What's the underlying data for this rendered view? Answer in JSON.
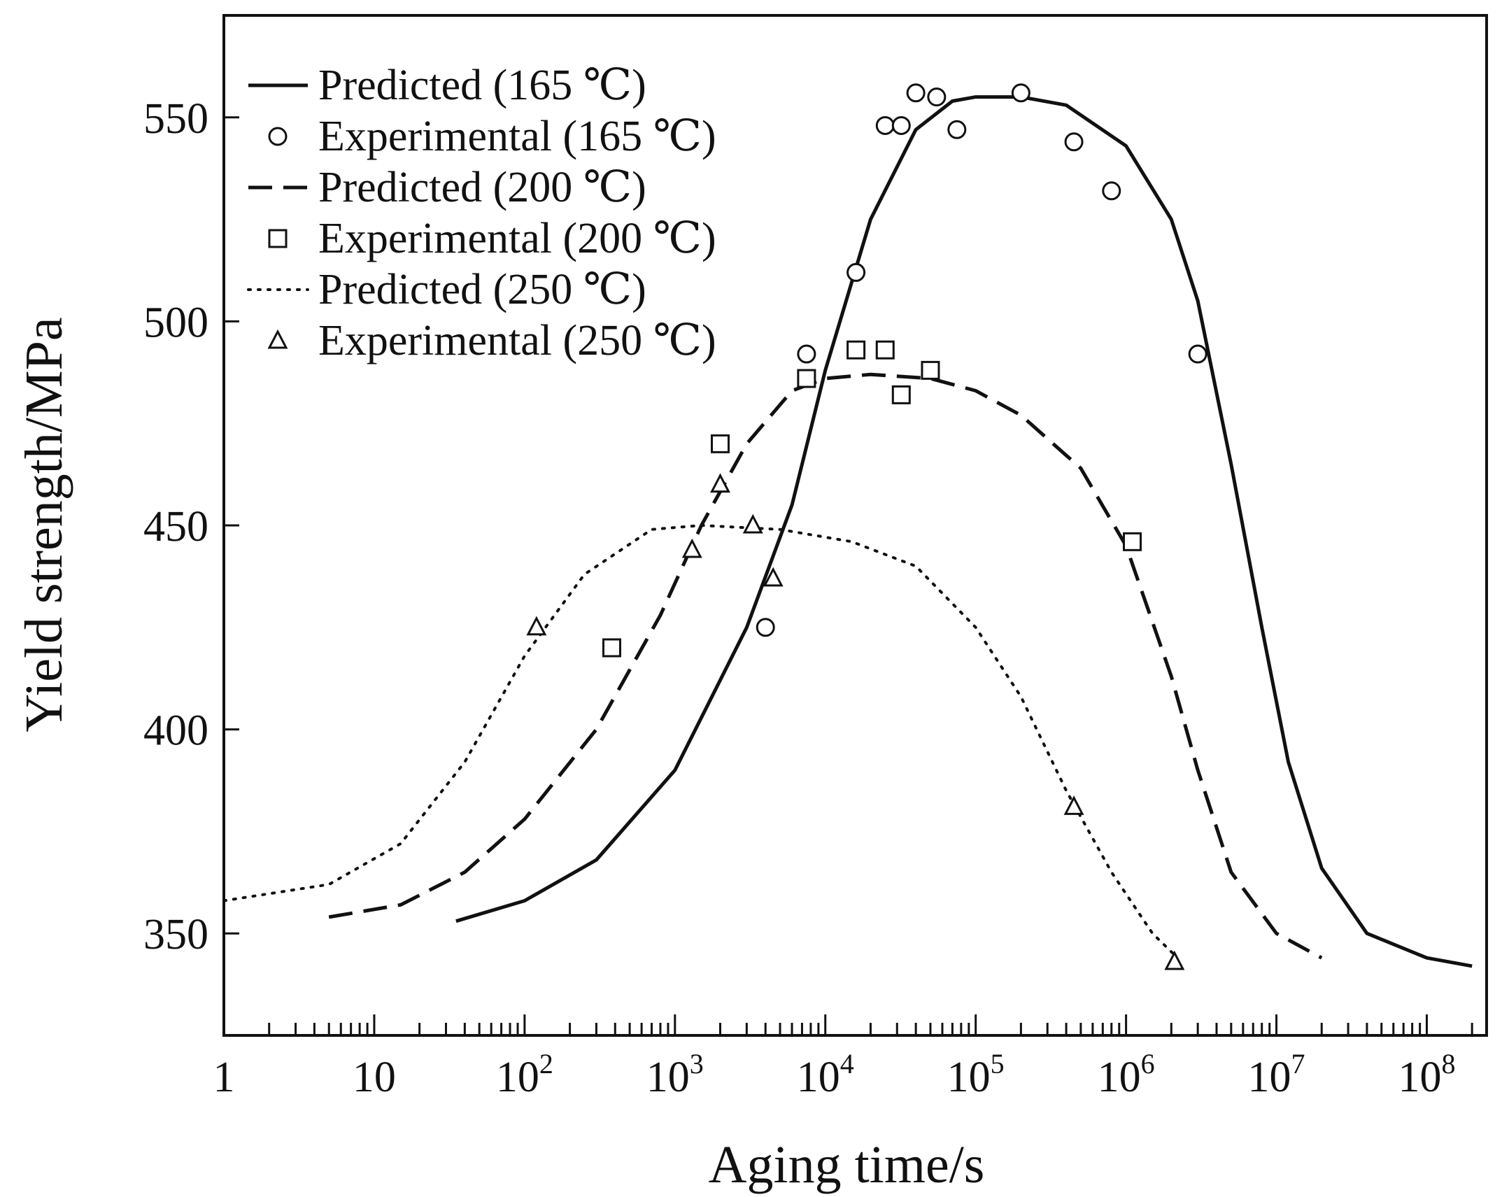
{
  "chart_data": {
    "type": "line",
    "title": "",
    "xlabel": "Aging time/s",
    "ylabel": "Yield strength/MPa",
    "xscale": "log",
    "xlim": [
      1,
      250000000
    ],
    "ylim": [
      325,
      575
    ],
    "x_tick_values": [
      1,
      10,
      100,
      1000,
      10000,
      100000,
      1000000,
      10000000,
      100000000
    ],
    "x_tick_labels": [
      {
        "base": "1",
        "exp": ""
      },
      {
        "base": "10",
        "exp": ""
      },
      {
        "base": "10",
        "exp": "2"
      },
      {
        "base": "10",
        "exp": "3"
      },
      {
        "base": "10",
        "exp": "4"
      },
      {
        "base": "10",
        "exp": "5"
      },
      {
        "base": "10",
        "exp": "6"
      },
      {
        "base": "10",
        "exp": "7"
      },
      {
        "base": "10",
        "exp": "8"
      }
    ],
    "y_ticks": [
      350,
      400,
      450,
      500,
      550
    ],
    "y_tick_labels": [
      "350",
      "400",
      "450",
      "500",
      "550"
    ],
    "legend_position": "top-left",
    "grid": false,
    "series": [
      {
        "name": "Predicted (165 ℃)",
        "kind": "line",
        "style": "solid",
        "color": "#111111",
        "points": [
          [
            35,
            353
          ],
          [
            100,
            358
          ],
          [
            300,
            368
          ],
          [
            1000,
            390
          ],
          [
            3000,
            425
          ],
          [
            6000,
            455
          ],
          [
            10000,
            488
          ],
          [
            20000,
            525
          ],
          [
            40000,
            547
          ],
          [
            70000,
            554
          ],
          [
            100000,
            555
          ],
          [
            200000,
            555
          ],
          [
            400000,
            553
          ],
          [
            1000000,
            543
          ],
          [
            2000000,
            525
          ],
          [
            3000000,
            505
          ],
          [
            5000000,
            465
          ],
          [
            8000000,
            425
          ],
          [
            12000000,
            392
          ],
          [
            20000000,
            366
          ],
          [
            40000000,
            350
          ],
          [
            100000000,
            344
          ],
          [
            200000000,
            342
          ]
        ]
      },
      {
        "name": "Experimental (165 ℃)",
        "kind": "scatter",
        "marker": "circle",
        "color": "#111111",
        "points": [
          [
            4000,
            425
          ],
          [
            7500,
            492
          ],
          [
            16000,
            512
          ],
          [
            25000,
            548
          ],
          [
            32000,
            548
          ],
          [
            40000,
            556
          ],
          [
            55000,
            555
          ],
          [
            75000,
            547
          ],
          [
            200000,
            556
          ],
          [
            450000,
            544
          ],
          [
            800000,
            532
          ],
          [
            3000000,
            492
          ]
        ]
      },
      {
        "name": "Predicted (200 ℃)",
        "kind": "line",
        "style": "dashed",
        "color": "#111111",
        "points": [
          [
            5,
            354
          ],
          [
            15,
            357
          ],
          [
            40,
            365
          ],
          [
            100,
            378
          ],
          [
            300,
            400
          ],
          [
            800,
            428
          ],
          [
            1500,
            450
          ],
          [
            3000,
            470
          ],
          [
            6000,
            483
          ],
          [
            10000,
            486
          ],
          [
            20000,
            487
          ],
          [
            50000,
            486
          ],
          [
            100000,
            483
          ],
          [
            200000,
            477
          ],
          [
            500000,
            464
          ],
          [
            1000000,
            445
          ],
          [
            2000000,
            413
          ],
          [
            3000000,
            390
          ],
          [
            5000000,
            365
          ],
          [
            10000000,
            350
          ],
          [
            20000000,
            344
          ]
        ]
      },
      {
        "name": "Experimental (200 ℃)",
        "kind": "scatter",
        "marker": "square",
        "color": "#111111",
        "points": [
          [
            380,
            420
          ],
          [
            2000,
            470
          ],
          [
            7500,
            486
          ],
          [
            16000,
            493
          ],
          [
            25000,
            493
          ],
          [
            32000,
            482
          ],
          [
            50000,
            488
          ],
          [
            1100000,
            446
          ]
        ]
      },
      {
        "name": "Predicted (250 ℃)",
        "kind": "line",
        "style": "dotted",
        "color": "#111111",
        "points": [
          [
            1,
            358
          ],
          [
            5,
            362
          ],
          [
            15,
            372
          ],
          [
            40,
            392
          ],
          [
            100,
            418
          ],
          [
            250,
            438
          ],
          [
            700,
            449
          ],
          [
            1500,
            450
          ],
          [
            5000,
            449
          ],
          [
            15000,
            446
          ],
          [
            40000,
            440
          ],
          [
            100000,
            425
          ],
          [
            200000,
            408
          ],
          [
            400000,
            385
          ],
          [
            800000,
            365
          ],
          [
            1500000,
            350
          ],
          [
            2200000,
            344
          ]
        ]
      },
      {
        "name": "Experimental (250 ℃)",
        "kind": "scatter",
        "marker": "triangle",
        "color": "#111111",
        "points": [
          [
            120,
            425
          ],
          [
            1300,
            444
          ],
          [
            2000,
            460
          ],
          [
            3300,
            450
          ],
          [
            4500,
            437
          ],
          [
            450000,
            381
          ],
          [
            2100000,
            343
          ]
        ]
      }
    ]
  }
}
